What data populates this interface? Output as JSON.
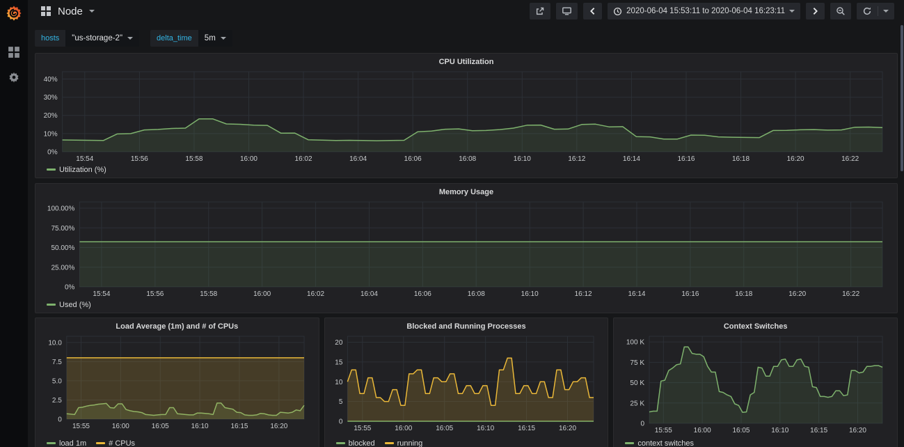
{
  "navbar": {
    "title": "Node",
    "time_range": "2020-06-04 15:53:11 to 2020-06-04 16:23:11"
  },
  "submenu": {
    "variables": [
      {
        "label": "hosts",
        "value": "\"us-storage-2\""
      },
      {
        "label": "delta_time",
        "value": "5m"
      }
    ]
  },
  "colors": {
    "green": "#7EB26D",
    "yellow": "#EAB839",
    "accent_cyan": "#33b5e5",
    "page_bg": "#161719",
    "panel_bg": "#212124",
    "grid": "#2c3036"
  },
  "chart_data": [
    {
      "id": "cpu_utilization",
      "type": "line",
      "title": "CPU Utilization",
      "x_range_min": 30,
      "y_max": 44,
      "grid": true,
      "legend_position": "bottom-left",
      "x_ticks": [
        {
          "t": 0.82,
          "label": "15:54"
        },
        {
          "t": 2.82,
          "label": "15:56"
        },
        {
          "t": 4.82,
          "label": "15:58"
        },
        {
          "t": 6.82,
          "label": "16:00"
        },
        {
          "t": 8.82,
          "label": "16:02"
        },
        {
          "t": 10.82,
          "label": "16:04"
        },
        {
          "t": 12.82,
          "label": "16:06"
        },
        {
          "t": 14.82,
          "label": "16:08"
        },
        {
          "t": 16.82,
          "label": "16:10"
        },
        {
          "t": 18.82,
          "label": "16:12"
        },
        {
          "t": 20.82,
          "label": "16:14"
        },
        {
          "t": 22.82,
          "label": "16:16"
        },
        {
          "t": 24.82,
          "label": "16:18"
        },
        {
          "t": 26.82,
          "label": "16:20"
        },
        {
          "t": 28.82,
          "label": "16:22"
        }
      ],
      "y_ticks": [
        {
          "v": 0,
          "label": "0%"
        },
        {
          "v": 10,
          "label": "10%"
        },
        {
          "v": 20,
          "label": "20%"
        },
        {
          "v": 30,
          "label": "30%"
        },
        {
          "v": 40,
          "label": "40%"
        }
      ],
      "series": [
        {
          "name": "Utilization (%)",
          "color": "#7EB26D",
          "fill": 0.12,
          "values": [
            6.5,
            6.4,
            6.3,
            6.2,
            9.8,
            10.0,
            12.0,
            12.3,
            12.8,
            13.0,
            18.1,
            18.1,
            15.3,
            15.1,
            14.6,
            14.5,
            10.2,
            10.3,
            6.6,
            6.4,
            6.2,
            6.3,
            6.2,
            6.1,
            6.2,
            6.3,
            11.0,
            11.4,
            12.4,
            12.6,
            11.6,
            11.7,
            12.2,
            13.0,
            14.6,
            14.7,
            12.4,
            12.5,
            15.0,
            15.2,
            13.7,
            13.8,
            8.3,
            8.2,
            7.0,
            7.0,
            9.2,
            9.1,
            8.2,
            8.0,
            7.9,
            7.8,
            11.7,
            11.8,
            12.1,
            12.2,
            11.9,
            12.0,
            13.5,
            13.6,
            13.3
          ]
        }
      ]
    },
    {
      "id": "memory_usage",
      "type": "line",
      "title": "Memory Usage",
      "x_range_min": 30,
      "y_max": 108,
      "grid": true,
      "legend_position": "bottom-left",
      "x_ticks": [
        {
          "t": 0.82,
          "label": "15:54"
        },
        {
          "t": 2.82,
          "label": "15:56"
        },
        {
          "t": 4.82,
          "label": "15:58"
        },
        {
          "t": 6.82,
          "label": "16:00"
        },
        {
          "t": 8.82,
          "label": "16:02"
        },
        {
          "t": 10.82,
          "label": "16:04"
        },
        {
          "t": 12.82,
          "label": "16:06"
        },
        {
          "t": 14.82,
          "label": "16:08"
        },
        {
          "t": 16.82,
          "label": "16:10"
        },
        {
          "t": 18.82,
          "label": "16:12"
        },
        {
          "t": 20.82,
          "label": "16:14"
        },
        {
          "t": 22.82,
          "label": "16:16"
        },
        {
          "t": 24.82,
          "label": "16:18"
        },
        {
          "t": 26.82,
          "label": "16:20"
        },
        {
          "t": 28.82,
          "label": "16:22"
        }
      ],
      "y_ticks": [
        {
          "v": 0,
          "label": "0%"
        },
        {
          "v": 25,
          "label": "25.00%"
        },
        {
          "v": 50,
          "label": "50.00%"
        },
        {
          "v": 75,
          "label": "75.00%"
        },
        {
          "v": 100,
          "label": "100.00%"
        }
      ],
      "series": [
        {
          "name": "Used (%)",
          "color": "#7EB26D",
          "fill": 0.12,
          "values": [
            57.3,
            57.3
          ]
        }
      ]
    },
    {
      "id": "load_average",
      "type": "line",
      "title": "Load Average (1m) and # of CPUs",
      "x_range_min": 30,
      "y_max": 10.8,
      "grid": true,
      "legend_position": "bottom-left",
      "x_ticks": [
        {
          "t": 1.82,
          "label": "15:55"
        },
        {
          "t": 6.82,
          "label": "16:00"
        },
        {
          "t": 11.82,
          "label": "16:05"
        },
        {
          "t": 16.82,
          "label": "16:10"
        },
        {
          "t": 21.82,
          "label": "16:15"
        },
        {
          "t": 26.82,
          "label": "16:20"
        }
      ],
      "y_ticks": [
        {
          "v": 0,
          "label": "0"
        },
        {
          "v": 2.5,
          "label": "2.5"
        },
        {
          "v": 5,
          "label": "5.0"
        },
        {
          "v": 7.5,
          "label": "7.5"
        },
        {
          "v": 10,
          "label": "10.0"
        }
      ],
      "series": [
        {
          "name": "load 1m",
          "color": "#7EB26D",
          "fill": 0.15,
          "values": [
            0.7,
            0.65,
            0.6,
            1.5,
            1.55,
            1.7,
            1.8,
            1.85,
            1.95,
            2.0,
            2.05,
            1.5,
            1.45,
            2.0,
            2.0,
            1.25,
            1.1,
            1.0,
            0.95,
            0.85,
            0.6,
            0.55,
            0.5,
            0.55,
            0.6,
            0.6,
            1.5,
            1.5,
            0.7,
            0.65,
            0.6,
            0.55,
            0.55,
            0.8,
            0.8,
            0.75,
            0.7,
            0.6,
            2.1,
            2.1,
            1.5,
            1.4,
            1.3,
            0.9,
            0.85,
            0.55,
            0.5,
            0.5,
            0.55,
            0.75,
            0.7,
            0.55,
            0.5,
            0.5,
            0.9,
            0.85,
            0.8,
            0.9,
            1.2,
            1.1,
            1.8
          ]
        },
        {
          "name": "# CPUs",
          "color": "#EAB839",
          "fill": 0.18,
          "values": [
            8,
            8
          ]
        }
      ]
    },
    {
      "id": "blocked_running_processes",
      "type": "line",
      "title": "Blocked and Running Processes",
      "x_range_min": 30,
      "y_max": 21.5,
      "grid": true,
      "legend_position": "bottom-left",
      "x_ticks": [
        {
          "t": 1.82,
          "label": "15:55"
        },
        {
          "t": 6.82,
          "label": "16:00"
        },
        {
          "t": 11.82,
          "label": "16:05"
        },
        {
          "t": 16.82,
          "label": "16:10"
        },
        {
          "t": 21.82,
          "label": "16:15"
        },
        {
          "t": 26.82,
          "label": "16:20"
        }
      ],
      "y_ticks": [
        {
          "v": 0,
          "label": "0"
        },
        {
          "v": 5,
          "label": "5"
        },
        {
          "v": 10,
          "label": "10"
        },
        {
          "v": 15,
          "label": "15"
        },
        {
          "v": 20,
          "label": "20"
        }
      ],
      "series": [
        {
          "name": "blocked",
          "color": "#7EB26D",
          "fill": 0,
          "values": [
            0,
            0
          ]
        },
        {
          "name": "running",
          "color": "#EAB839",
          "fill": 0.18,
          "values": [
            10,
            13,
            13,
            7,
            7,
            11,
            11,
            6,
            6,
            5,
            5,
            8,
            8,
            4,
            4,
            12,
            12,
            13,
            13,
            7,
            7,
            11,
            11,
            10,
            10,
            12,
            12,
            7,
            7,
            9,
            9,
            7,
            7,
            9,
            9,
            4,
            4,
            13,
            13,
            16,
            16,
            7,
            7,
            9,
            9,
            7,
            7,
            10,
            10,
            6,
            6,
            13,
            13,
            8,
            8,
            10,
            10,
            11,
            11,
            6,
            6
          ]
        }
      ]
    },
    {
      "id": "context_switches",
      "type": "line",
      "title": "Context Switches",
      "x_range_min": 30,
      "y_max": 107,
      "grid": true,
      "legend_position": "bottom-left",
      "x_ticks": [
        {
          "t": 1.82,
          "label": "15:55"
        },
        {
          "t": 6.82,
          "label": "16:00"
        },
        {
          "t": 11.82,
          "label": "16:05"
        },
        {
          "t": 16.82,
          "label": "16:10"
        },
        {
          "t": 21.82,
          "label": "16:15"
        },
        {
          "t": 26.82,
          "label": "16:20"
        }
      ],
      "y_ticks": [
        {
          "v": 0,
          "label": "0"
        },
        {
          "v": 25,
          "label": "25 K"
        },
        {
          "v": 50,
          "label": "50 K"
        },
        {
          "v": 75,
          "label": "75 K"
        },
        {
          "v": 100,
          "label": "100 K"
        }
      ],
      "series": [
        {
          "name": "context switches",
          "color": "#7EB26D",
          "fill": 0.12,
          "values": [
            14,
            15,
            15,
            52,
            53,
            65,
            68,
            72,
            73,
            94,
            94,
            86,
            85,
            85,
            82,
            70,
            63,
            63,
            39,
            38,
            35,
            33,
            24,
            22,
            13.5,
            14,
            35,
            38,
            69,
            68,
            58,
            58,
            70,
            70,
            78,
            79,
            70,
            70,
            78,
            79,
            70,
            69,
            45,
            44,
            33,
            33,
            32,
            33,
            40,
            40,
            34,
            35,
            65,
            65,
            62,
            63,
            70,
            70,
            71,
            71,
            69
          ]
        }
      ]
    }
  ]
}
